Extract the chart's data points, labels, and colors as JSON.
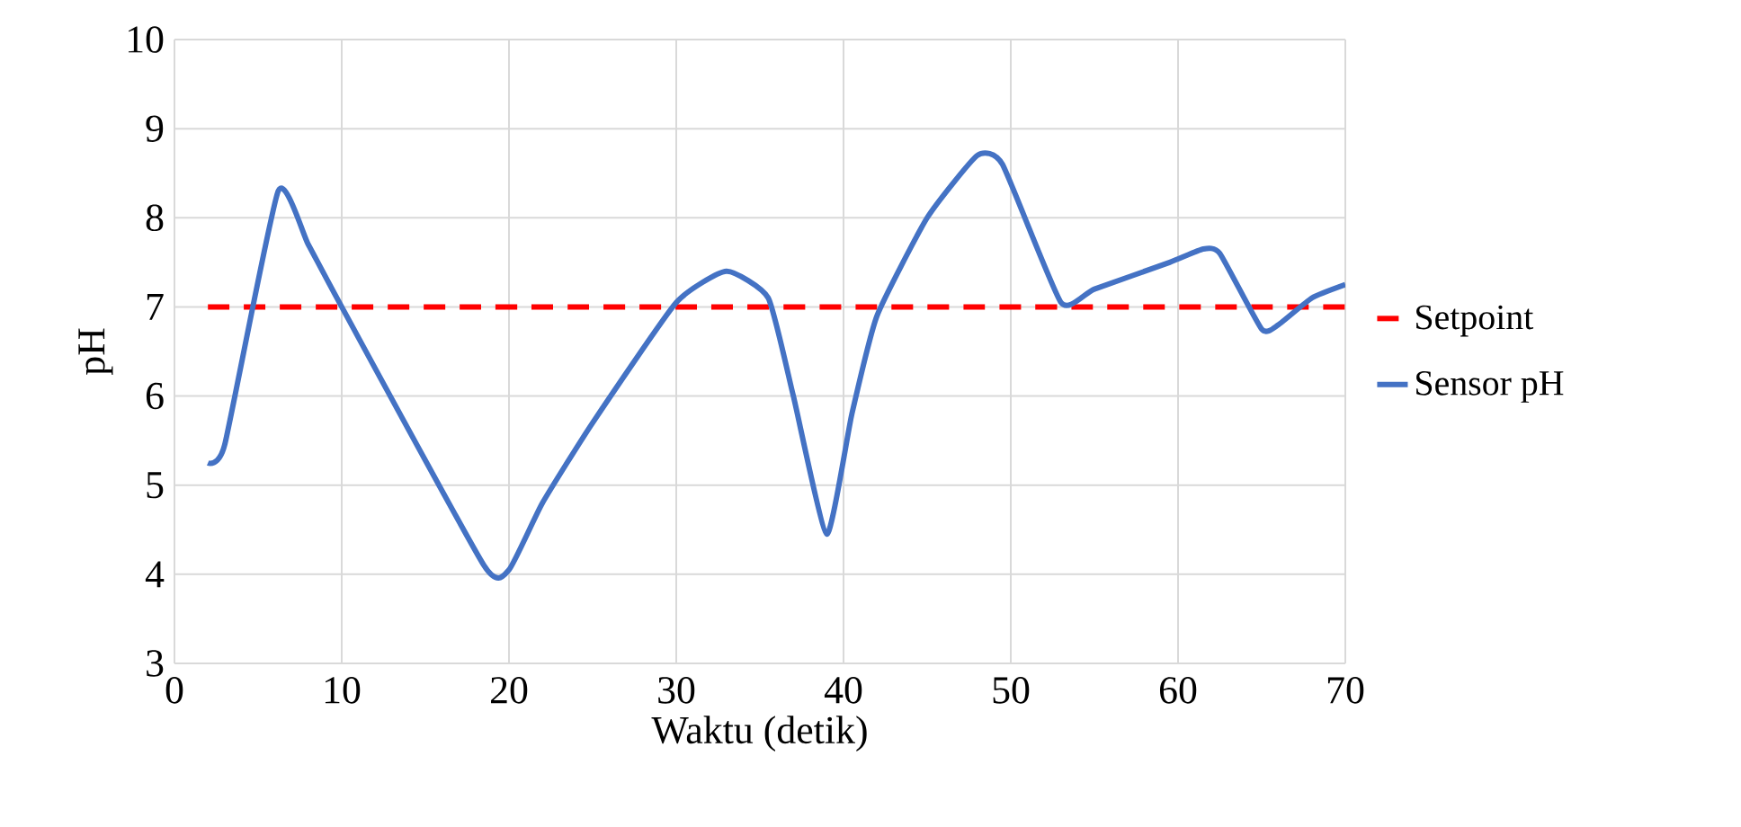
{
  "chart_data": {
    "type": "line",
    "xlabel": "Waktu (detik)",
    "ylabel": "pH",
    "xlim": [
      0,
      70
    ],
    "ylim": [
      3,
      10
    ],
    "xticks": [
      0,
      10,
      20,
      30,
      40,
      50,
      60,
      70
    ],
    "yticks": [
      3,
      4,
      5,
      6,
      7,
      8,
      9,
      10
    ],
    "grid": true,
    "legend": "right",
    "series": [
      {
        "name": "Setpoint",
        "color": "#ff0000",
        "line_style": "dashed",
        "x": [
          2,
          70
        ],
        "values": [
          7,
          7
        ]
      },
      {
        "name": "Sensor pH",
        "color": "#4472c4",
        "line_style": "solid",
        "x": [
          2,
          3,
          6.2,
          8,
          10,
          18.5,
          20,
          22,
          25,
          30,
          33,
          35.5,
          37,
          39,
          40.5,
          42,
          45,
          48,
          49.5,
          53,
          55,
          59.5,
          61.5,
          62.5,
          65,
          66,
          68,
          70
        ],
        "values": [
          5.25,
          5.45,
          8.3,
          7.7,
          7.0,
          4.1,
          4.05,
          4.8,
          5.7,
          7.05,
          7.4,
          7.1,
          6.0,
          4.45,
          5.8,
          6.9,
          8.0,
          8.7,
          8.6,
          7.05,
          7.2,
          7.5,
          7.65,
          7.6,
          6.75,
          6.8,
          7.1,
          7.25
        ]
      }
    ]
  }
}
